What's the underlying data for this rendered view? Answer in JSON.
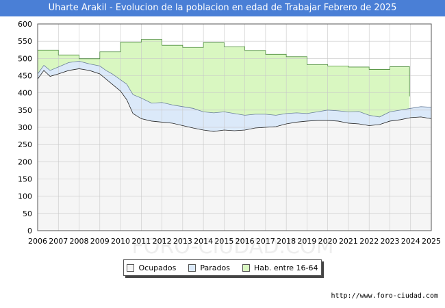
{
  "chart_data": {
    "type": "area",
    "title": "Uharte Arakil - Evolucion de la poblacion en edad de Trabajar Febrero de 2025",
    "xlabel": "",
    "ylabel": "",
    "ylim": [
      0,
      600
    ],
    "xlim": [
      2006,
      2025
    ],
    "yticks": [
      0,
      50,
      100,
      150,
      200,
      250,
      300,
      350,
      400,
      450,
      500,
      550,
      600
    ],
    "xticks": [
      2006,
      2007,
      2008,
      2009,
      2010,
      2011,
      2012,
      2013,
      2014,
      2015,
      2016,
      2017,
      2018,
      2019,
      2020,
      2021,
      2022,
      2023,
      2024,
      2025
    ],
    "grid": true,
    "legend_position": "bottom",
    "series": [
      {
        "name": "Hab. entre 16-64",
        "color": "#d9f7c1",
        "line_color": "#4a8a3a",
        "step": true,
        "x": [
          2006,
          2007,
          2008,
          2009,
          2010,
          2011,
          2012,
          2013,
          2014,
          2015,
          2016,
          2017,
          2018,
          2019,
          2020,
          2021,
          2022,
          2023,
          2023.95
        ],
        "values": [
          524,
          510,
          499,
          519,
          547,
          555,
          538,
          532,
          546,
          534,
          523,
          512,
          505,
          482,
          478,
          475,
          468,
          476,
          390
        ]
      },
      {
        "name": "Parados",
        "color": "#dbe9f9",
        "line_color": "#6a7f9a",
        "step": false,
        "x": [
          2006,
          2006.3,
          2006.6,
          2007,
          2007.5,
          2008,
          2008.5,
          2009,
          2009.3,
          2009.6,
          2010,
          2010.3,
          2010.6,
          2011,
          2011.5,
          2012,
          2012.5,
          2013,
          2013.5,
          2014,
          2014.5,
          2015,
          2015.5,
          2016,
          2016.5,
          2017,
          2017.5,
          2018,
          2018.5,
          2019,
          2019.5,
          2020,
          2020.5,
          2021,
          2021.5,
          2022,
          2022.5,
          2023,
          2023.5,
          2024,
          2024.5,
          2025
        ],
        "values": [
          455,
          480,
          465,
          475,
          488,
          492,
          484,
          478,
          465,
          455,
          438,
          425,
          395,
          385,
          370,
          372,
          365,
          360,
          355,
          345,
          342,
          345,
          340,
          335,
          338,
          338,
          335,
          340,
          342,
          340,
          345,
          350,
          348,
          345,
          346,
          335,
          330,
          345,
          350,
          355,
          360,
          358
        ]
      },
      {
        "name": "Ocupados",
        "color": "#f5f5f5",
        "line_color": "#222222",
        "step": false,
        "x": [
          2006,
          2006.3,
          2006.6,
          2007,
          2007.5,
          2008,
          2008.5,
          2009,
          2009.3,
          2009.6,
          2010,
          2010.3,
          2010.6,
          2011,
          2011.5,
          2012,
          2012.5,
          2013,
          2013.5,
          2014,
          2014.5,
          2015,
          2015.5,
          2016,
          2016.5,
          2017,
          2017.5,
          2018,
          2018.5,
          2019,
          2019.5,
          2020,
          2020.5,
          2021,
          2021.5,
          2022,
          2022.5,
          2023,
          2023.5,
          2024,
          2024.5,
          2025
        ],
        "values": [
          440,
          465,
          448,
          455,
          465,
          470,
          465,
          455,
          440,
          425,
          405,
          380,
          340,
          325,
          318,
          315,
          312,
          305,
          298,
          292,
          288,
          292,
          290,
          292,
          298,
          300,
          302,
          310,
          315,
          318,
          320,
          320,
          318,
          312,
          310,
          305,
          308,
          318,
          322,
          328,
          330,
          325
        ]
      }
    ]
  },
  "legend": {
    "items": [
      {
        "label": "Ocupados",
        "color": "#f5f5f5"
      },
      {
        "label": "Parados",
        "color": "#dbe9f9"
      },
      {
        "label": "Hab. entre 16-64",
        "color": "#d9f7c1"
      }
    ]
  },
  "footer": {
    "url": "http://www.foro-ciudad.com"
  },
  "watermark": "FORO-CIUDAD.COM"
}
